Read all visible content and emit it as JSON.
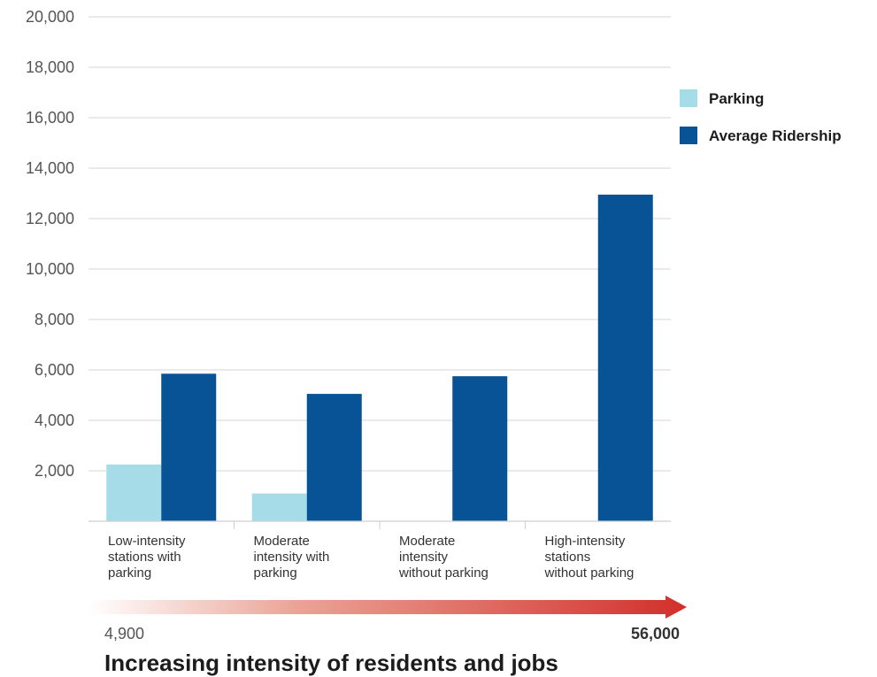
{
  "chart_data": {
    "type": "bar",
    "categories": [
      [
        "Low-intensity",
        "stations with",
        "parking"
      ],
      [
        "Moderate",
        "intensity with",
        "parking"
      ],
      [
        "Moderate",
        "intensity",
        "without parking"
      ],
      [
        "High-intensity",
        "stations",
        "without parking"
      ]
    ],
    "series": [
      {
        "name": "Parking",
        "values": [
          2250,
          1100,
          0,
          0
        ],
        "color": "#a6dce8"
      },
      {
        "name": "Average Ridership",
        "values": [
          5850,
          5050,
          5750,
          12950
        ],
        "color": "#075395"
      }
    ],
    "ylim": [
      0,
      20000
    ],
    "yticks": [
      2000,
      4000,
      6000,
      8000,
      10000,
      12000,
      14000,
      16000,
      18000,
      20000
    ],
    "ytick_labels": [
      "2,000",
      "4,000",
      "6,000",
      "8,000",
      "10,000",
      "12,000",
      "14,000",
      "16,000",
      "18,000",
      "20,000"
    ],
    "grid": true,
    "legend_position": "right",
    "intensity_scale": {
      "start_label": "4,900",
      "end_label": "56,000",
      "color": "#d22f2a"
    },
    "xlabel": "Increasing intensity of residents and jobs",
    "ylabel": "",
    "title": ""
  }
}
